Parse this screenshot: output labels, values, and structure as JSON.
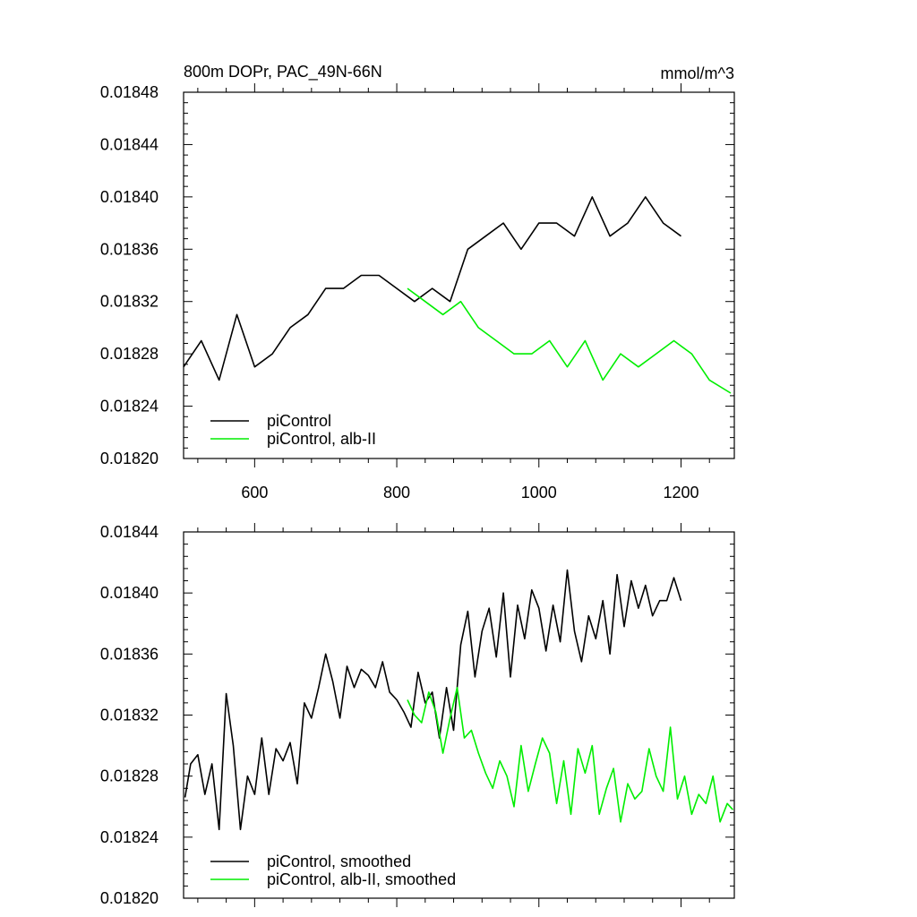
{
  "chart_data": [
    {
      "type": "line",
      "title": "800m DOPr, PAC_49N-66N",
      "units": "mmol/m^3",
      "xlabel": "",
      "ylabel": "",
      "xlim": [
        500,
        1275
      ],
      "ylim": [
        0.0182,
        0.01848
      ],
      "xticks": [
        600,
        800,
        1000,
        1200
      ],
      "xtick_labels": [
        "600",
        "800",
        "1000",
        "1200"
      ],
      "yticks": [
        0.0182,
        0.01824,
        0.01828,
        0.01832,
        0.01836,
        0.0184,
        0.01844,
        0.01848
      ],
      "ytick_labels": [
        "0.01820",
        "0.01824",
        "0.01828",
        "0.01832",
        "0.01836",
        "0.01840",
        "0.01844",
        "0.01848"
      ],
      "legend_position": "bottom-left",
      "series": [
        {
          "name": "piControl",
          "color": "#000000",
          "x": [
            500,
            525,
            550,
            575,
            600,
            625,
            650,
            675,
            700,
            725,
            750,
            775,
            800,
            825,
            850,
            875,
            900,
            925,
            950,
            975,
            1000,
            1025,
            1050,
            1075,
            1100,
            1125,
            1150,
            1175,
            1200
          ],
          "y": [
            0.01827,
            0.01829,
            0.01826,
            0.01831,
            0.01827,
            0.01828,
            0.0183,
            0.01831,
            0.01833,
            0.01833,
            0.01834,
            0.01834,
            0.01833,
            0.01832,
            0.01833,
            0.01832,
            0.01836,
            0.01837,
            0.01838,
            0.01836,
            0.01838,
            0.01838,
            0.01837,
            0.0184,
            0.01837,
            0.01838,
            0.0184,
            0.01838,
            0.01837
          ]
        },
        {
          "name": "piControl, alb-II",
          "color": "#00ee00",
          "x": [
            815,
            840,
            865,
            890,
            915,
            940,
            965,
            990,
            1015,
            1040,
            1065,
            1090,
            1115,
            1140,
            1165,
            1190,
            1215,
            1240,
            1270
          ],
          "y": [
            0.01833,
            0.01832,
            0.01831,
            0.01832,
            0.0183,
            0.01829,
            0.01828,
            0.01828,
            0.01829,
            0.01827,
            0.01829,
            0.01826,
            0.01828,
            0.01827,
            0.01828,
            0.01829,
            0.01828,
            0.01826,
            0.01825
          ]
        }
      ]
    },
    {
      "type": "line",
      "title": "",
      "xlabel": "",
      "ylabel": "",
      "xlim": [
        500,
        1275
      ],
      "ylim": [
        0.0182,
        0.01844
      ],
      "xticks": [
        600,
        800,
        1000,
        1200
      ],
      "xtick_labels": [
        "",
        "",
        "",
        ""
      ],
      "yticks": [
        0.0182,
        0.01824,
        0.01828,
        0.01832,
        0.01836,
        0.0184,
        0.01844
      ],
      "ytick_labels": [
        "0.01820",
        "0.01824",
        "0.01828",
        "0.01832",
        "0.01836",
        "0.01840",
        "0.01844"
      ],
      "legend_position": "bottom-left",
      "series": [
        {
          "name": "piControl, smoothed",
          "color": "#000000",
          "x": [
            502,
            510,
            520,
            530,
            540,
            550,
            560,
            570,
            580,
            590,
            600,
            610,
            620,
            630,
            640,
            650,
            660,
            670,
            680,
            690,
            700,
            710,
            720,
            730,
            740,
            750,
            760,
            770,
            780,
            790,
            800,
            810,
            820,
            830,
            840,
            850,
            860,
            870,
            880,
            890,
            900,
            910,
            920,
            930,
            940,
            950,
            960,
            970,
            980,
            990,
            1000,
            1010,
            1020,
            1030,
            1040,
            1050,
            1060,
            1070,
            1080,
            1090,
            1100,
            1110,
            1120,
            1130,
            1140,
            1150,
            1160,
            1170,
            1180,
            1190,
            1200
          ],
          "y": [
            0.018266,
            0.018288,
            0.018294,
            0.018268,
            0.018288,
            0.018245,
            0.018334,
            0.0183,
            0.018245,
            0.01828,
            0.018268,
            0.018305,
            0.018268,
            0.018298,
            0.01829,
            0.018302,
            0.018275,
            0.018328,
            0.018318,
            0.018338,
            0.01836,
            0.018342,
            0.018318,
            0.018352,
            0.018338,
            0.01835,
            0.018346,
            0.018338,
            0.018355,
            0.018335,
            0.01833,
            0.018322,
            0.018312,
            0.018348,
            0.018328,
            0.018335,
            0.018305,
            0.018338,
            0.01831,
            0.018366,
            0.018388,
            0.018345,
            0.018375,
            0.01839,
            0.018358,
            0.0184,
            0.018345,
            0.018392,
            0.01837,
            0.018402,
            0.01839,
            0.018362,
            0.018392,
            0.018368,
            0.018415,
            0.018375,
            0.018355,
            0.018385,
            0.01837,
            0.018395,
            0.01836,
            0.018412,
            0.018378,
            0.018408,
            0.01839,
            0.018405,
            0.018385,
            0.018395,
            0.018395,
            0.01841,
            0.018395
          ]
        },
        {
          "name": "piControl, alb-II, smoothed",
          "color": "#00ee00",
          "x": [
            815,
            825,
            835,
            845,
            855,
            865,
            875,
            885,
            895,
            905,
            915,
            925,
            935,
            945,
            955,
            965,
            975,
            985,
            995,
            1005,
            1015,
            1025,
            1035,
            1045,
            1055,
            1065,
            1075,
            1085,
            1095,
            1105,
            1115,
            1125,
            1135,
            1145,
            1155,
            1165,
            1175,
            1185,
            1195,
            1205,
            1215,
            1225,
            1235,
            1245,
            1255,
            1265,
            1273
          ],
          "y": [
            0.01833,
            0.01832,
            0.018315,
            0.018335,
            0.018322,
            0.018295,
            0.018318,
            0.018338,
            0.018305,
            0.01831,
            0.018295,
            0.018282,
            0.018272,
            0.01829,
            0.01828,
            0.01826,
            0.0183,
            0.01827,
            0.018288,
            0.018305,
            0.018295,
            0.018262,
            0.01829,
            0.018255,
            0.018298,
            0.018282,
            0.0183,
            0.018255,
            0.018272,
            0.018285,
            0.01825,
            0.018275,
            0.018265,
            0.01827,
            0.018298,
            0.01828,
            0.01827,
            0.018312,
            0.018265,
            0.01828,
            0.018255,
            0.018268,
            0.018262,
            0.01828,
            0.01825,
            0.018262,
            0.018258
          ]
        }
      ]
    }
  ]
}
